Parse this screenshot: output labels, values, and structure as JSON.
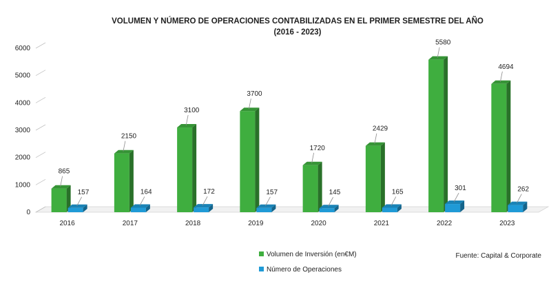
{
  "chart_data": {
    "type": "bar",
    "title": "VOLUMEN Y NÚMERO DE OPERACIONES CONTABILIZADAS EN EL PRIMER SEMESTRE DEL AÑO",
    "subtitle": "(2016 - 2023)",
    "categories": [
      "2016",
      "2017",
      "2018",
      "2019",
      "2020",
      "2021",
      "2022",
      "2023"
    ],
    "series": [
      {
        "name": "Volumen de Inversión (en€M)",
        "values": [
          865,
          2150,
          3100,
          3700,
          1720,
          2429,
          5580,
          4694
        ],
        "color": "#3fae3f"
      },
      {
        "name": "Número de Operaciones",
        "values": [
          157,
          164,
          172,
          157,
          145,
          165,
          301,
          262
        ],
        "color": "#1f9ad6"
      }
    ],
    "ylim": [
      0,
      6000
    ],
    "yticks": [
      "0",
      "1000",
      "2000",
      "3000",
      "4000",
      "5000",
      "6000"
    ],
    "xlabel": "",
    "ylabel": "",
    "grid": false,
    "legend_position": "bottom-center"
  },
  "source_text": "Fuente:  Capital & Corporate"
}
